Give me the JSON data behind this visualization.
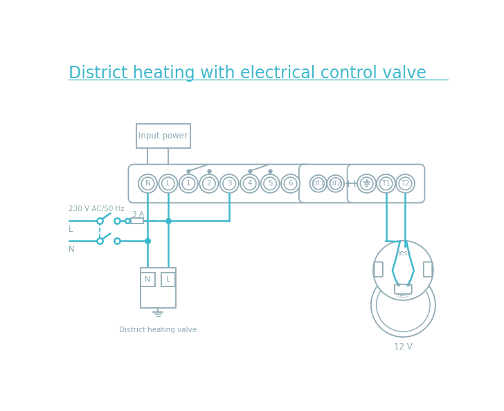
{
  "title": "District heating with electrical control valve",
  "title_color": "#3db8cc",
  "bg_color": "#ffffff",
  "line_color": "#3db8cc",
  "comp_color": "#8faab5",
  "main_terminals": [
    "N",
    "L",
    "1",
    "2",
    "3",
    "4",
    "5",
    "6"
  ],
  "ot_terminals": [
    "OT1",
    "OT2"
  ],
  "label_230v": "230 V AC/50 Hz",
  "label_L": "L",
  "label_N": "N",
  "label_fuse": "3 A",
  "label_input_power": "Input power",
  "label_valve": "District heating valve",
  "label_nest": "12 V",
  "label_nest_top": "nest",
  "label_nest_bottom": "nest"
}
